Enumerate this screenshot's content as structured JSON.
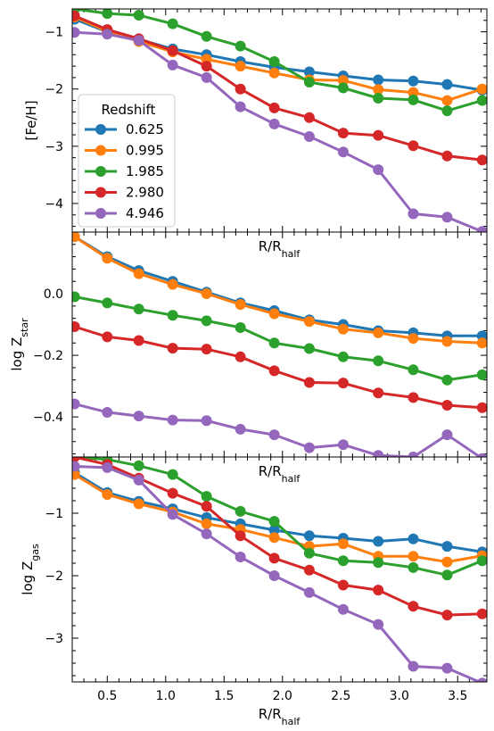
{
  "chart_data": {
    "type": "line",
    "legend": {
      "title": "Redshift",
      "location": "lower-left of top panel",
      "entries": [
        "0.625",
        "0.995",
        "1.985",
        "2.980",
        "4.946"
      ]
    },
    "colors": [
      "#1f77b4",
      "#ff7f0e",
      "#2ca02c",
      "#d62728",
      "#9467bd"
    ],
    "shared_xlabel": "R/R_half",
    "xlim": [
      0.2,
      3.75
    ],
    "xticks": [
      0.5,
      1.0,
      1.5,
      2.0,
      2.5,
      3.0,
      3.5
    ],
    "xtick_labels": [
      "0.5",
      "1.0",
      "1.5",
      "2.0",
      "2.5",
      "3.0",
      "3.5"
    ],
    "x": [
      0.22,
      0.5,
      0.77,
      1.06,
      1.35,
      1.64,
      1.93,
      2.23,
      2.52,
      2.82,
      3.12,
      3.41,
      3.71
    ],
    "panels": [
      {
        "ylabel": "[Fe/H]",
        "ylim": [
          -4.5,
          -0.6
        ],
        "yticks": [
          -1,
          -2,
          -3,
          -4
        ],
        "ytick_labels": [
          "−1",
          "−2",
          "−3",
          "−4"
        ],
        "series": [
          {
            "name": "0.625",
            "values": [
              -0.78,
              -1.0,
              -1.13,
              -1.3,
              -1.4,
              -1.52,
              -1.62,
              -1.7,
              -1.77,
              -1.84,
              -1.86,
              -1.92,
              -2.02
            ]
          },
          {
            "name": "0.995",
            "values": [
              -0.74,
              -0.99,
              -1.17,
              -1.35,
              -1.48,
              -1.6,
              -1.72,
              -1.84,
              -1.85,
              -2.01,
              -2.06,
              -2.2,
              -2.0
            ]
          },
          {
            "name": "1.985",
            "values": [
              -0.6,
              -0.68,
              -0.71,
              -0.86,
              -1.08,
              -1.25,
              -1.52,
              -1.88,
              -1.98,
              -2.16,
              -2.19,
              -2.38,
              -2.2
            ]
          },
          {
            "name": "2.980",
            "values": [
              -0.72,
              -0.96,
              -1.12,
              -1.33,
              -1.6,
              -2.0,
              -2.33,
              -2.5,
              -2.77,
              -2.81,
              -2.99,
              -3.17,
              -3.24
            ]
          },
          {
            "name": "4.946",
            "values": [
              -1.01,
              -1.04,
              -1.15,
              -1.58,
              -1.8,
              -2.31,
              -2.61,
              -2.83,
              -3.1,
              -3.41,
              -4.18,
              -4.24,
              -4.49
            ]
          }
        ]
      },
      {
        "ylabel": "log Z_star",
        "ylim": [
          -0.53,
          0.2
        ],
        "yticks": [
          0.0,
          -0.2,
          -0.4
        ],
        "ytick_labels": [
          "0.0",
          "−0.2",
          "−0.4"
        ],
        "series": [
          {
            "name": "0.625",
            "values": [
              0.185,
              0.12,
              0.075,
              0.04,
              0.005,
              -0.03,
              -0.055,
              -0.085,
              -0.1,
              -0.12,
              -0.127,
              -0.137,
              -0.137
            ]
          },
          {
            "name": "0.995",
            "values": [
              0.185,
              0.115,
              0.065,
              0.03,
              0.0,
              -0.035,
              -0.065,
              -0.09,
              -0.115,
              -0.127,
              -0.145,
              -0.155,
              -0.16
            ]
          },
          {
            "name": "1.985",
            "values": [
              -0.01,
              -0.03,
              -0.05,
              -0.07,
              -0.088,
              -0.11,
              -0.16,
              -0.178,
              -0.205,
              -0.218,
              -0.247,
              -0.28,
              -0.263
            ]
          },
          {
            "name": "2.980",
            "values": [
              -0.107,
              -0.14,
              -0.152,
              -0.177,
              -0.18,
              -0.205,
              -0.25,
              -0.288,
              -0.29,
              -0.322,
              -0.337,
              -0.362,
              -0.37
            ]
          },
          {
            "name": "4.946",
            "values": [
              -0.358,
              -0.385,
              -0.397,
              -0.41,
              -0.412,
              -0.44,
              -0.458,
              -0.5,
              -0.49,
              -0.525,
              -0.53,
              -0.458,
              -0.535
            ]
          }
        ]
      },
      {
        "ylabel": "log Z_gas",
        "ylim": [
          -3.7,
          -0.1
        ],
        "yticks": [
          -1,
          -2,
          -3
        ],
        "ytick_labels": [
          "−1",
          "−2",
          "−3"
        ],
        "series": [
          {
            "name": "0.625",
            "values": [
              -0.35,
              -0.67,
              -0.81,
              -0.93,
              -1.07,
              -1.17,
              -1.27,
              -1.36,
              -1.4,
              -1.45,
              -1.41,
              -1.53,
              -1.62
            ]
          },
          {
            "name": "0.995",
            "values": [
              -0.38,
              -0.7,
              -0.85,
              -0.98,
              -1.17,
              -1.26,
              -1.39,
              -1.53,
              -1.49,
              -1.69,
              -1.69,
              -1.78,
              -1.68
            ]
          },
          {
            "name": "1.985",
            "values": [
              -0.1,
              -0.14,
              -0.24,
              -0.38,
              -0.73,
              -0.97,
              -1.13,
              -1.64,
              -1.76,
              -1.79,
              -1.87,
              -1.99,
              -1.76
            ]
          },
          {
            "name": "2.980",
            "values": [
              -0.1,
              -0.22,
              -0.44,
              -0.68,
              -0.89,
              -1.36,
              -1.72,
              -1.91,
              -2.15,
              -2.23,
              -2.49,
              -2.63,
              -2.61
            ]
          },
          {
            "name": "4.946",
            "values": [
              -0.25,
              -0.27,
              -0.47,
              -1.02,
              -1.33,
              -1.7,
              -2.0,
              -2.27,
              -2.54,
              -2.78,
              -3.45,
              -3.48,
              -3.72
            ]
          }
        ]
      }
    ]
  }
}
